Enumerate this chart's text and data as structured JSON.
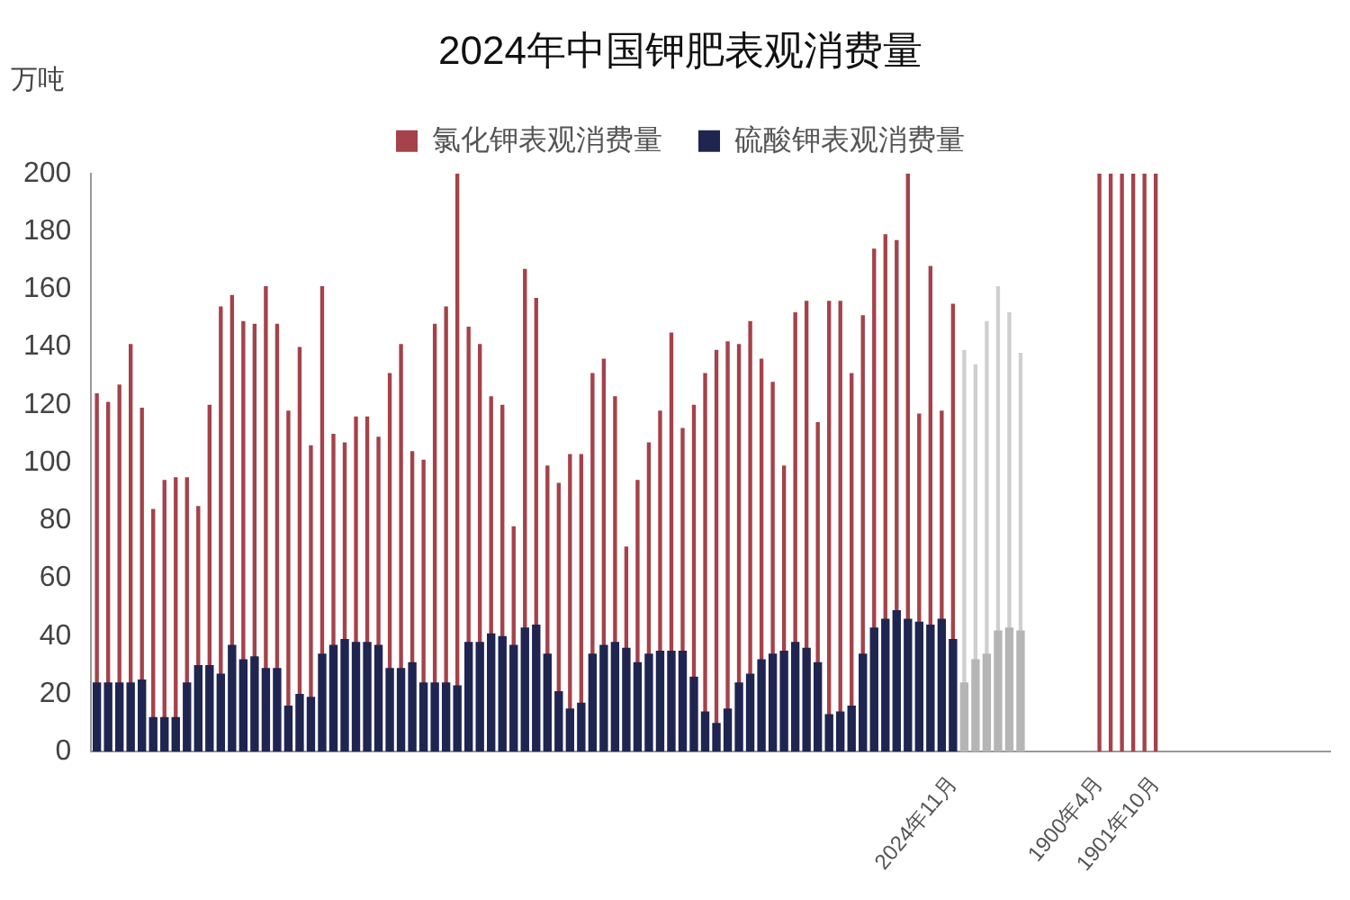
{
  "chart_data": {
    "type": "bar",
    "title": "2024年中国钾肥表观消费量",
    "ylabel": "万吨",
    "categories": [
      null,
      null,
      null,
      null,
      null,
      null,
      null,
      null,
      null,
      null,
      null,
      null,
      null,
      null,
      null,
      null,
      null,
      null,
      null,
      null,
      null,
      null,
      null,
      null,
      null,
      null,
      null,
      null,
      null,
      null,
      null,
      null,
      null,
      null,
      null,
      null,
      null,
      null,
      null,
      null,
      null,
      null,
      null,
      null,
      null,
      null,
      null,
      null,
      null,
      null,
      null,
      null,
      null,
      null,
      null,
      null,
      null,
      null,
      null,
      null,
      null,
      null,
      null,
      null,
      null,
      null,
      null,
      null,
      null,
      null,
      null,
      null,
      null,
      null,
      null,
      null,
      "2024年11月",
      null,
      null,
      null,
      null,
      null,
      null,
      null,
      null,
      null,
      null,
      null,
      null,
      "1900年4月",
      null,
      null,
      null,
      null,
      "1901年10月",
      null,
      null,
      null,
      null,
      null,
      null,
      null,
      null,
      null,
      null,
      null,
      null,
      null,
      null,
      null
    ],
    "series": [
      {
        "name": "氯化钾表观消费量",
        "color": "#a5424a",
        "values": [
          124,
          121,
          127,
          141,
          119,
          84,
          94,
          95,
          95,
          85,
          120,
          154,
          158,
          149,
          148,
          161,
          148,
          118,
          140,
          106,
          161,
          110,
          107,
          116,
          116,
          109,
          131,
          141,
          104,
          101,
          148,
          154,
          200,
          147,
          141,
          123,
          120,
          78,
          167,
          157,
          99,
          93,
          103,
          103,
          131,
          136,
          123,
          71,
          94,
          107,
          118,
          145,
          112,
          120,
          131,
          139,
          142,
          141,
          149,
          136,
          128,
          99,
          152,
          156,
          114,
          156,
          156,
          131,
          151,
          174,
          179,
          177,
          200,
          117,
          168,
          118,
          155,
          139,
          134,
          149,
          161,
          152,
          138,
          null,
          null,
          null,
          null,
          null,
          null,
          200,
          200,
          200,
          200,
          200,
          200,
          null,
          null,
          null,
          null,
          null,
          null,
          null,
          null,
          null,
          null,
          null,
          null,
          null,
          null,
          null
        ],
        "colors": [
          "#a5424a",
          "#a5424a",
          "#a5424a",
          "#a5424a",
          "#a5424a",
          "#a5424a",
          "#a5424a",
          "#a5424a",
          "#a5424a",
          "#a5424a",
          "#a5424a",
          "#a5424a",
          "#a5424a",
          "#a5424a",
          "#a5424a",
          "#a5424a",
          "#a5424a",
          "#a5424a",
          "#a5424a",
          "#a5424a",
          "#a5424a",
          "#a5424a",
          "#a5424a",
          "#a5424a",
          "#a5424a",
          "#a5424a",
          "#a5424a",
          "#a5424a",
          "#a5424a",
          "#a5424a",
          "#a5424a",
          "#a5424a",
          "#a5424a",
          "#a5424a",
          "#a5424a",
          "#a5424a",
          "#a5424a",
          "#a5424a",
          "#a5424a",
          "#a5424a",
          "#a5424a",
          "#a5424a",
          "#a5424a",
          "#a5424a",
          "#a5424a",
          "#a5424a",
          "#a5424a",
          "#a5424a",
          "#a5424a",
          "#a5424a",
          "#a5424a",
          "#a5424a",
          "#a5424a",
          "#a5424a",
          "#a5424a",
          "#a5424a",
          "#a5424a",
          "#a5424a",
          "#a5424a",
          "#a5424a",
          "#a5424a",
          "#a5424a",
          "#a5424a",
          "#a5424a",
          "#a5424a",
          "#a5424a",
          "#a5424a",
          "#a5424a",
          "#a5424a",
          "#a5424a",
          "#a5424a",
          "#a5424a",
          "#a5424a",
          "#a5424a",
          "#a5424a",
          "#a5424a",
          "#a5424a",
          "#cfcfcf",
          "#cfcfcf",
          "#cfcfcf",
          "#cfcfcf",
          "#cfcfcf",
          "#cfcfcf",
          "#a5424a",
          "#a5424a",
          "#a5424a",
          "#a5424a",
          "#a5424a",
          "#a5424a",
          "#a5424a",
          "#a5424a",
          "#a5424a",
          "#a5424a",
          "#a5424a",
          "#a5424a",
          "#a5424a",
          "#a5424a",
          "#a5424a",
          "#a5424a",
          "#a5424a",
          "#a5424a",
          "#a5424a",
          "#a5424a",
          "#a5424a",
          "#a5424a",
          "#a5424a",
          "#a5424a",
          "#a5424a",
          "#a5424a",
          "#a5424a"
        ]
      },
      {
        "name": "硫酸钾表观消费量",
        "color": "#1f2550",
        "values": [
          24,
          24,
          24,
          24,
          25,
          12,
          12,
          12,
          24,
          30,
          30,
          27,
          37,
          32,
          33,
          29,
          29,
          16,
          20,
          19,
          34,
          37,
          39,
          38,
          38,
          37,
          29,
          29,
          31,
          24,
          24,
          24,
          23,
          38,
          38,
          41,
          40,
          37,
          43,
          44,
          34,
          21,
          15,
          17,
          34,
          37,
          38,
          36,
          31,
          34,
          35,
          35,
          35,
          26,
          14,
          10,
          15,
          24,
          27,
          32,
          34,
          35,
          38,
          36,
          31,
          13,
          14,
          16,
          34,
          43,
          46,
          49,
          46,
          45,
          44,
          46,
          39,
          24,
          32,
          34,
          42,
          43,
          42,
          null,
          null,
          null,
          null,
          null,
          null,
          null,
          null,
          null,
          null,
          null,
          null,
          null,
          null,
          null,
          null,
          null,
          null,
          null,
          null,
          null,
          null,
          null,
          null,
          null,
          null,
          null
        ],
        "colors": [
          "#1f2550",
          "#1f2550",
          "#1f2550",
          "#1f2550",
          "#1f2550",
          "#1f2550",
          "#1f2550",
          "#1f2550",
          "#1f2550",
          "#1f2550",
          "#1f2550",
          "#1f2550",
          "#1f2550",
          "#1f2550",
          "#1f2550",
          "#1f2550",
          "#1f2550",
          "#1f2550",
          "#1f2550",
          "#1f2550",
          "#1f2550",
          "#1f2550",
          "#1f2550",
          "#1f2550",
          "#1f2550",
          "#1f2550",
          "#1f2550",
          "#1f2550",
          "#1f2550",
          "#1f2550",
          "#1f2550",
          "#1f2550",
          "#1f2550",
          "#1f2550",
          "#1f2550",
          "#1f2550",
          "#1f2550",
          "#1f2550",
          "#1f2550",
          "#1f2550",
          "#1f2550",
          "#1f2550",
          "#1f2550",
          "#1f2550",
          "#1f2550",
          "#1f2550",
          "#1f2550",
          "#1f2550",
          "#1f2550",
          "#1f2550",
          "#1f2550",
          "#1f2550",
          "#1f2550",
          "#1f2550",
          "#1f2550",
          "#1f2550",
          "#1f2550",
          "#1f2550",
          "#1f2550",
          "#1f2550",
          "#1f2550",
          "#1f2550",
          "#1f2550",
          "#1f2550",
          "#1f2550",
          "#1f2550",
          "#1f2550",
          "#1f2550",
          "#1f2550",
          "#1f2550",
          "#1f2550",
          "#1f2550",
          "#1f2550",
          "#1f2550",
          "#1f2550",
          "#1f2550",
          "#1f2550",
          "#b5b5b5",
          "#b5b5b5",
          "#b5b5b5",
          "#b5b5b5",
          "#b5b5b5",
          "#b5b5b5",
          "#1f2550",
          "#1f2550",
          "#1f2550",
          "#1f2550",
          "#1f2550",
          "#1f2550",
          "#1f2550",
          "#1f2550",
          "#1f2550",
          "#1f2550",
          "#1f2550",
          "#1f2550",
          "#1f2550",
          "#1f2550",
          "#1f2550",
          "#1f2550",
          "#1f2550",
          "#1f2550",
          "#1f2550",
          "#1f2550",
          "#1f2550",
          "#1f2550",
          "#1f2550",
          "#1f2550",
          "#1f2550",
          "#1f2550",
          "#1f2550"
        ]
      }
    ],
    "ylim": [
      0,
      200
    ],
    "yticks": [
      0,
      20,
      40,
      60,
      80,
      100,
      120,
      140,
      160,
      180,
      200
    ],
    "grid": false,
    "legend": "top"
  }
}
